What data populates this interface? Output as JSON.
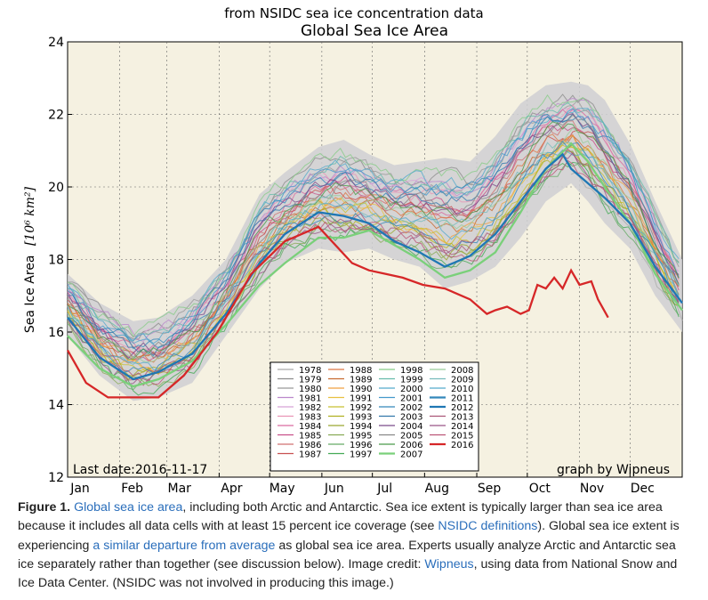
{
  "chart_data": {
    "type": "line",
    "supertitle": "from NSIDC sea ice concentration data",
    "title": "Global Sea Ice Area",
    "ylabel": "Sea Ice Area",
    "ylabel_units": "[10⁶ km²]",
    "ylim": [
      12,
      24
    ],
    "yticks": [
      12,
      14,
      16,
      18,
      20,
      22,
      24
    ],
    "xlim": [
      1,
      366
    ],
    "months": [
      "Jan",
      "Feb",
      "Mar",
      "Apr",
      "May",
      "Jun",
      "Jul",
      "Aug",
      "Sep",
      "Oct",
      "Nov",
      "Dec"
    ],
    "month_days": [
      1,
      32,
      60,
      91,
      121,
      152,
      182,
      213,
      244,
      274,
      305,
      335
    ],
    "grid": true,
    "legend_placement": "lower center",
    "annotation_left": "Last date:2016-11-17",
    "annotation_right": "graph by Wipneus",
    "envelope": {
      "x": [
        1,
        20,
        40,
        55,
        75,
        95,
        115,
        130,
        150,
        165,
        180,
        195,
        210,
        225,
        240,
        255,
        270,
        285,
        300,
        310,
        320,
        335,
        350,
        366
      ],
      "lo": [
        15.9,
        14.8,
        14.1,
        14.2,
        14.6,
        15.9,
        17.2,
        17.9,
        18.3,
        18.2,
        18.3,
        18.0,
        17.8,
        17.2,
        17.4,
        17.8,
        18.6,
        19.6,
        20.1,
        19.6,
        19.0,
        18.3,
        17.0,
        16.0
      ],
      "hi": [
        17.6,
        16.8,
        16.3,
        16.4,
        17.0,
        18.0,
        19.8,
        20.4,
        21.1,
        21.3,
        20.9,
        20.6,
        20.7,
        20.8,
        20.7,
        21.4,
        22.3,
        22.8,
        22.9,
        22.8,
        22.4,
        21.2,
        19.6,
        18.0
      ]
    },
    "series": [
      {
        "name": "1978",
        "color": "#aaaaaa"
      },
      {
        "name": "1979",
        "color": "#8c8c8c"
      },
      {
        "name": "1980",
        "color": "#999999"
      },
      {
        "name": "1981",
        "color": "#bb88cc"
      },
      {
        "name": "1982",
        "color": "#d8a2d8"
      },
      {
        "name": "1983",
        "color": "#e994b5"
      },
      {
        "name": "1984",
        "color": "#d96aa0"
      },
      {
        "name": "1985",
        "color": "#c8508a"
      },
      {
        "name": "1986",
        "color": "#d07070"
      },
      {
        "name": "1987",
        "color": "#c85050"
      },
      {
        "name": "1988",
        "color": "#dd7744"
      },
      {
        "name": "1989",
        "color": "#c86a30"
      },
      {
        "name": "1990",
        "color": "#f0a040"
      },
      {
        "name": "1991",
        "color": "#e8c040"
      },
      {
        "name": "1992",
        "color": "#c8c030"
      },
      {
        "name": "1993",
        "color": "#b0b020"
      },
      {
        "name": "1994",
        "color": "#9aa830"
      },
      {
        "name": "1995",
        "color": "#88aa55"
      },
      {
        "name": "1996",
        "color": "#66aa66"
      },
      {
        "name": "1997",
        "color": "#44aa55"
      },
      {
        "name": "1998",
        "color": "#88cc88"
      },
      {
        "name": "1999",
        "color": "#66bbaa"
      },
      {
        "name": "2000",
        "color": "#55aacc"
      },
      {
        "name": "2001",
        "color": "#4499cc"
      },
      {
        "name": "2002",
        "color": "#3388bb"
      },
      {
        "name": "2003",
        "color": "#3377aa"
      },
      {
        "name": "2004",
        "color": "#7a4a8a"
      },
      {
        "name": "2005",
        "color": "#888888"
      },
      {
        "name": "2006",
        "color": "#4a9a4a"
      },
      {
        "name": "2007",
        "color": "#7ad07a"
      },
      {
        "name": "2008",
        "color": "#99cc99"
      },
      {
        "name": "2009",
        "color": "#77bbbb"
      },
      {
        "name": "2010",
        "color": "#55aacc"
      },
      {
        "name": "2011",
        "color": "#3388bb"
      },
      {
        "name": "2012",
        "color": "#1f77b4"
      },
      {
        "name": "2013",
        "color": "#aa5577"
      },
      {
        "name": "2014",
        "color": "#995588"
      },
      {
        "name": "2015",
        "color": "#bb5577"
      },
      {
        "name": "2016",
        "color": "#d62728"
      }
    ],
    "highlight_series": {
      "2016": {
        "x": [
          1,
          12,
          25,
          40,
          55,
          70,
          90,
          110,
          130,
          150,
          160,
          170,
          180,
          190,
          200,
          212,
          225,
          240,
          250,
          255,
          262,
          270,
          275,
          280,
          285,
          290,
          295,
          300,
          305,
          312,
          316,
          322
        ],
        "y": [
          15.5,
          14.6,
          14.2,
          14.2,
          14.2,
          14.8,
          16.0,
          17.6,
          18.5,
          18.9,
          18.4,
          17.9,
          17.7,
          17.6,
          17.5,
          17.3,
          17.2,
          16.9,
          16.5,
          16.6,
          16.7,
          16.5,
          16.6,
          17.3,
          17.2,
          17.5,
          17.2,
          17.7,
          17.3,
          17.4,
          16.9,
          16.4
        ]
      },
      "2012": {
        "x": [
          1,
          20,
          40,
          55,
          75,
          95,
          115,
          130,
          150,
          165,
          180,
          195,
          210,
          225,
          240,
          255,
          270,
          285,
          295,
          300,
          310,
          320,
          335,
          350,
          366
        ],
        "y": [
          16.4,
          15.3,
          14.7,
          14.9,
          15.4,
          16.5,
          17.9,
          18.7,
          19.3,
          19.2,
          19.0,
          18.5,
          18.2,
          17.8,
          18.1,
          18.7,
          19.6,
          20.5,
          20.9,
          20.5,
          20.1,
          19.7,
          19.0,
          17.8,
          16.8
        ]
      },
      "2007": {
        "x": [
          1,
          20,
          40,
          55,
          75,
          95,
          115,
          130,
          150,
          165,
          180,
          195,
          210,
          225,
          240,
          255,
          270,
          285,
          300,
          310,
          320,
          335,
          350,
          366
        ],
        "y": [
          15.9,
          15.0,
          14.5,
          14.7,
          15.2,
          16.2,
          17.3,
          17.9,
          18.6,
          18.6,
          18.8,
          18.4,
          18.0,
          17.5,
          17.7,
          18.2,
          19.3,
          20.5,
          21.2,
          20.7,
          20.0,
          19.0,
          17.6,
          16.6
        ]
      }
    }
  },
  "caption": {
    "figure_label": "Figure 1.",
    "link1": "Global sea ice area",
    "t1": ", including both Arctic and Antarctic. Sea ice extent is typically larger than sea ice area because it includes all data cells with at least 15 percent ice coverage (see ",
    "link2": "NSIDC definitions",
    "t2": "). Global sea ice extent is experiencing ",
    "link3": "a similar departure from average",
    "t3": " as global sea ice area. Experts usually analyze Arctic and Antarctic sea ice separately rather than together (see discussion below). Image credit: ",
    "link4": "Wipneus",
    "t4": ", using data from National Snow and Ice Data Center. (NSIDC was not involved in producing this image.)"
  }
}
